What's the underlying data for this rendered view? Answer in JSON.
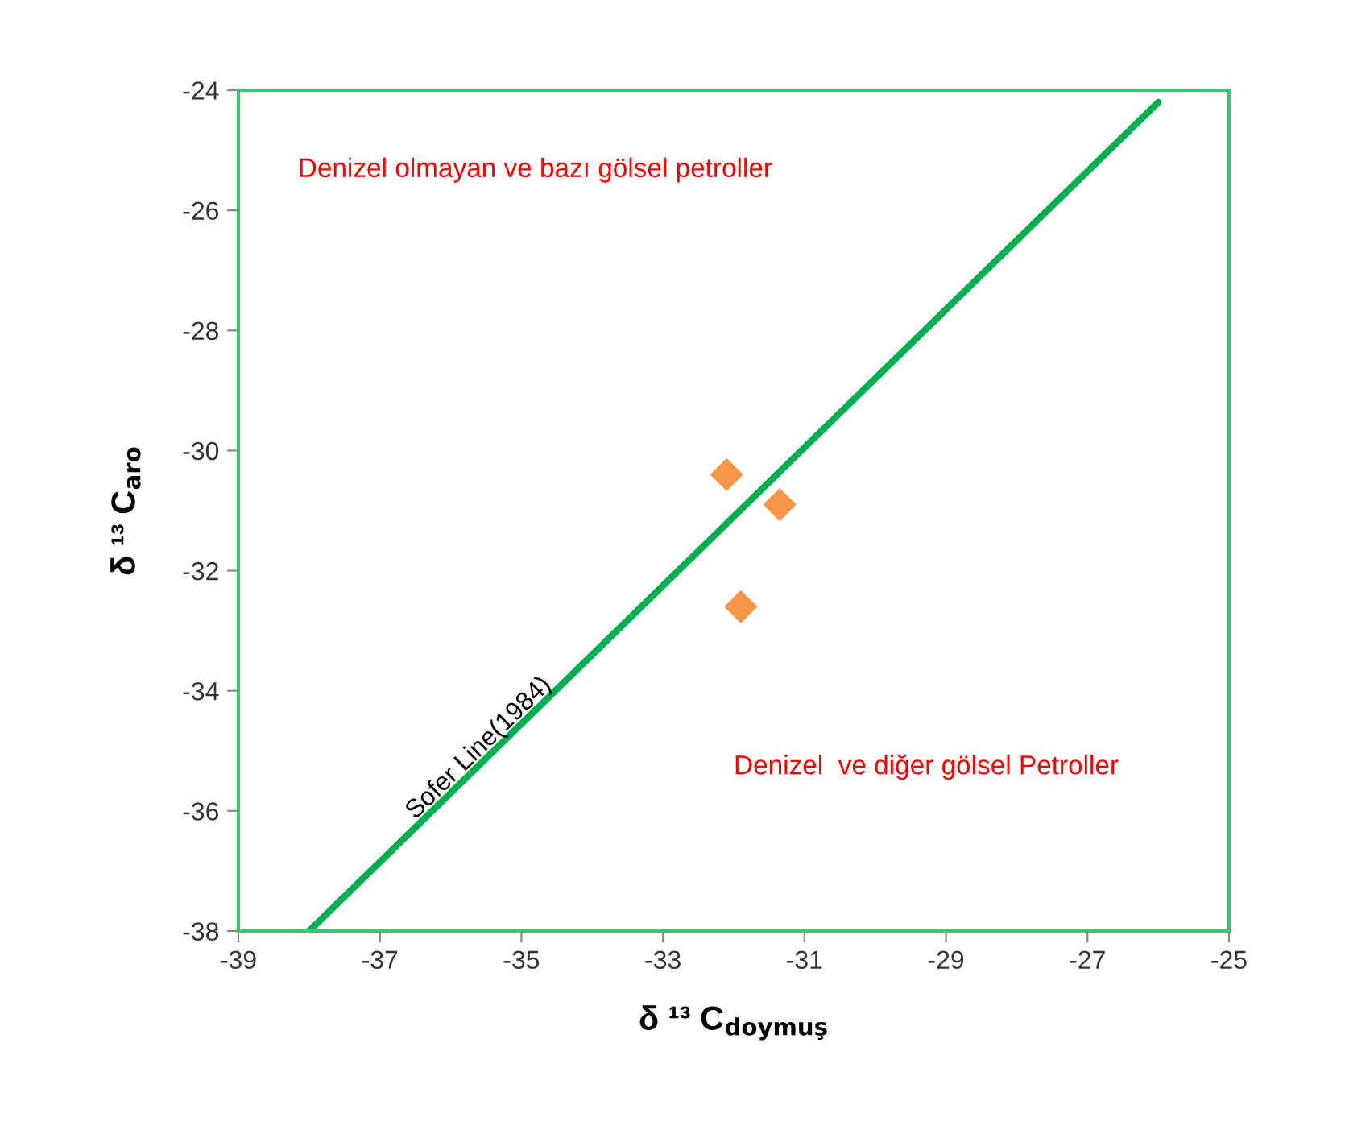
{
  "chart_data": {
    "type": "scatter",
    "xlabel": "δ ¹³ C$_{doymuş}$",
    "ylabel": "δ ¹³ C$_{aro}$",
    "xlim": [
      -39,
      -25
    ],
    "xticks": [
      -39,
      -37,
      -35,
      -33,
      -31,
      -29,
      -27,
      -25
    ],
    "ylim": [
      -38,
      -24
    ],
    "yticks": [
      -38,
      -36,
      -34,
      -32,
      -30,
      -28,
      -26,
      -24
    ],
    "grid": false,
    "legend": false,
    "marker": "diamond",
    "series": [
      {
        "type": "line",
        "name": "Sofer Line(1984)",
        "color": "#00b050",
        "x": [
          -38.0,
          -26.0
        ],
        "values": [
          -38.0,
          -24.2
        ],
        "marker": "none",
        "line_style": "solid"
      },
      {
        "type": "scatter",
        "color": "#f79646",
        "x": [
          -32.1,
          -31.35,
          -31.9
        ],
        "values": [
          -30.4,
          -30.9,
          -32.6
        ]
      }
    ],
    "annotations": [
      "Denizel olmayan ve bazı gölsel petroller",
      "Denizel  ve diğer gölsel Petroller"
    ]
  }
}
